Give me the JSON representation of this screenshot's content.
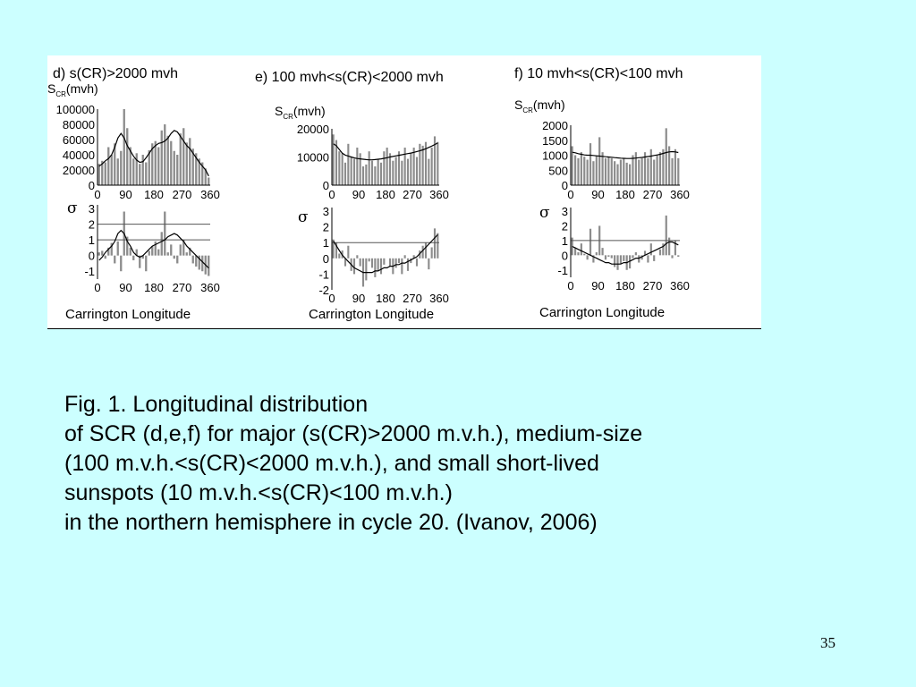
{
  "chart_data": [
    {
      "type": "bar",
      "title": "d) s(CR)>2000 mvh",
      "xlabel": "Carrington Longitude",
      "upper": {
        "ylabel_main": "S",
        "ylabel_sub": "CR",
        "ylabel_unit": "(mvh)",
        "ylim": [
          0,
          100000
        ],
        "yticks": [
          "100000",
          "80000",
          "60000",
          "40000",
          "20000",
          "0"
        ],
        "xticks": [
          "0",
          "90",
          "180",
          "270",
          "360"
        ],
        "xlim": [
          0,
          360
        ],
        "values": [
          28000,
          32000,
          30000,
          50000,
          40000,
          55000,
          35000,
          45000,
          100000,
          75000,
          50000,
          35000,
          42000,
          28000,
          40000,
          30000,
          46000,
          55000,
          58000,
          50000,
          72000,
          80000,
          65000,
          58000,
          45000,
          40000,
          68000,
          75000,
          56000,
          62000,
          48000,
          42000,
          35000,
          30000,
          22000,
          10000
        ],
        "smooth": [
          25000,
          28000,
          32000,
          35000,
          40000,
          50000,
          62000,
          68000,
          62000,
          52000,
          45000,
          38000,
          33000,
          30000,
          31000,
          36000,
          42000,
          48000,
          52000,
          55000,
          56000,
          58000,
          62000,
          68000,
          72000,
          70000,
          64000,
          58000,
          52000,
          48000,
          42000,
          36000,
          30000,
          25000,
          20000,
          12000
        ]
      },
      "lower": {
        "ylabel": "σ",
        "ylim": [
          -1.5,
          3
        ],
        "yticks": [
          "3",
          "2",
          "1",
          "0",
          "-1"
        ],
        "xticks": [
          "0",
          "90",
          "180",
          "270",
          "360"
        ],
        "xlim": [
          0,
          360
        ],
        "reference_lines": [
          2,
          1
        ],
        "values": [
          0.2,
          0.3,
          -0.2,
          0.5,
          0.8,
          -0.5,
          0.9,
          -1.0,
          2.8,
          1.2,
          0.5,
          -0.3,
          0.4,
          -0.8,
          -0.2,
          -1.0,
          0.3,
          0.6,
          0.9,
          0.4,
          1.5,
          2.8,
          0.2,
          0.7,
          -0.2,
          -0.5,
          0.7,
          1.0,
          0.2,
          0.5,
          -0.5,
          -0.7,
          -0.9,
          -1.0,
          -1.2,
          -1.3
        ],
        "smooth": [
          -0.3,
          -0.1,
          0.2,
          0.4,
          0.6,
          0.9,
          1.4,
          1.6,
          1.4,
          0.9,
          0.6,
          0.2,
          0.0,
          -0.1,
          0.0,
          0.2,
          0.4,
          0.6,
          0.7,
          0.8,
          0.9,
          1.0,
          1.2,
          1.3,
          1.4,
          1.3,
          1.1,
          0.9,
          0.6,
          0.4,
          0.2,
          0.0,
          -0.2,
          -0.4,
          -0.6,
          -0.8
        ]
      }
    },
    {
      "type": "bar",
      "title": "e) 100 mvh<s(CR)<2000 mvh",
      "xlabel": "Carrington Longitude",
      "upper": {
        "ylabel_main": "S",
        "ylabel_sub": "CR",
        "ylabel_unit": "(mvh)",
        "ylim": [
          0,
          30000
        ],
        "yticks": [
          "20000",
          "10000",
          "0"
        ],
        "xticks": [
          "0",
          "90",
          "180",
          "270",
          "360"
        ],
        "xlim": [
          0,
          360
        ],
        "values": [
          27000,
          24000,
          18000,
          17000,
          12000,
          22000,
          15000,
          14000,
          20000,
          17000,
          10000,
          11000,
          18000,
          13000,
          10000,
          14000,
          12000,
          18000,
          20000,
          17000,
          13000,
          15000,
          18000,
          13000,
          20000,
          14000,
          17000,
          20000,
          15000,
          22000,
          21000,
          23000,
          14000,
          20000,
          26000,
          23000
        ],
        "smooth": [
          22000,
          21000,
          19000,
          17000,
          16000,
          15500,
          15000,
          14500,
          14200,
          14000,
          13800,
          13600,
          13500,
          13500,
          13600,
          13800,
          14000,
          14300,
          14600,
          15000,
          15300,
          15600,
          15900,
          16200,
          16500,
          16800,
          17100,
          17500,
          17900,
          18300,
          18800,
          19400,
          20100,
          20800,
          21600,
          22500
        ]
      },
      "lower": {
        "ylabel": "σ",
        "ylim": [
          -2,
          3
        ],
        "yticks": [
          "3",
          "2",
          "1",
          "0",
          "-1",
          "-2"
        ],
        "xticks": [
          "0",
          "90",
          "180",
          "270",
          "360"
        ],
        "xlim": [
          0,
          360
        ],
        "reference_lines": [
          1
        ],
        "values": [
          1.2,
          1.0,
          0.3,
          0.5,
          -0.5,
          0.8,
          -0.8,
          -1.0,
          0.2,
          -0.5,
          -1.8,
          -1.4,
          -0.2,
          -0.6,
          -1.2,
          -0.8,
          -1.0,
          -0.4,
          0.0,
          -0.5,
          -1.0,
          -0.6,
          -0.3,
          -1.0,
          0.2,
          -0.8,
          -0.3,
          0.2,
          -0.5,
          0.5,
          0.8,
          1.0,
          -0.7,
          0.7,
          1.9,
          1.6
        ],
        "smooth": [
          1.1,
          0.8,
          0.5,
          0.2,
          0.0,
          -0.2,
          -0.4,
          -0.6,
          -0.7,
          -0.8,
          -0.9,
          -0.9,
          -0.9,
          -0.9,
          -0.8,
          -0.8,
          -0.7,
          -0.6,
          -0.6,
          -0.5,
          -0.5,
          -0.4,
          -0.4,
          -0.3,
          -0.3,
          -0.2,
          -0.1,
          0.0,
          0.1,
          0.3,
          0.5,
          0.7,
          0.9,
          1.1,
          1.3,
          1.5
        ]
      }
    },
    {
      "type": "bar",
      "title": "f) 10 mvh<s(CR)<100 mvh",
      "xlabel": "Carrington Longitude",
      "upper": {
        "ylabel_main": "S",
        "ylabel_sub": "CR",
        "ylabel_unit": "(mvh)",
        "ylim": [
          0,
          2000
        ],
        "yticks": [
          "2000",
          "1500",
          "1000",
          "500",
          "0"
        ],
        "xticks": [
          "0",
          "90",
          "180",
          "270",
          "360"
        ],
        "xlim": [
          0,
          360
        ],
        "values": [
          1300,
          1000,
          900,
          1100,
          950,
          850,
          1400,
          800,
          1000,
          1600,
          1100,
          900,
          950,
          900,
          800,
          700,
          850,
          900,
          750,
          700,
          1000,
          1100,
          850,
          900,
          1100,
          900,
          1200,
          850,
          1000,
          1100,
          1200,
          1900,
          1300,
          900,
          1200,
          900
        ],
        "smooth": [
          1100,
          1080,
          1050,
          1030,
          1010,
          1000,
          1000,
          990,
          980,
          970,
          960,
          950,
          940,
          930,
          920,
          910,
          900,
          895,
          890,
          890,
          895,
          905,
          915,
          925,
          940,
          955,
          970,
          990,
          1010,
          1030,
          1060,
          1090,
          1110,
          1120,
          1110,
          1090
        ]
      },
      "lower": {
        "ylabel": "σ",
        "ylim": [
          -1.5,
          3
        ],
        "yticks": [
          "3",
          "2",
          "1",
          "0",
          "-1"
        ],
        "xticks": [
          "0",
          "90",
          "180",
          "270",
          "360"
        ],
        "xlim": [
          0,
          360
        ],
        "reference_lines": [
          1
        ],
        "values": [
          1.2,
          0.5,
          0.2,
          0.8,
          0.1,
          -0.3,
          1.8,
          -0.5,
          0.2,
          2.0,
          0.5,
          -0.3,
          -0.1,
          -0.2,
          -0.8,
          -1.0,
          -0.6,
          -0.4,
          -1.0,
          -0.9,
          -0.2,
          0.2,
          -0.5,
          -0.3,
          0.3,
          -0.5,
          0.8,
          -0.4,
          0.0,
          0.4,
          0.8,
          2.7,
          1.2,
          -0.2,
          1.0,
          -0.1
        ],
        "smooth": [
          0.6,
          0.5,
          0.4,
          0.3,
          0.2,
          0.1,
          0.0,
          -0.1,
          -0.2,
          -0.3,
          -0.4,
          -0.5,
          -0.5,
          -0.6,
          -0.6,
          -0.6,
          -0.6,
          -0.5,
          -0.5,
          -0.4,
          -0.3,
          -0.2,
          -0.2,
          -0.1,
          0.0,
          0.1,
          0.2,
          0.3,
          0.4,
          0.5,
          0.6,
          0.8,
          0.9,
          0.9,
          0.8,
          0.7
        ]
      }
    }
  ],
  "colors": {
    "background": "#ccffff",
    "bar": "#8c8c8c",
    "line": "#000000",
    "reference_line": "#555555"
  },
  "caption": {
    "line1": "Fig. 1. Longitudinal distribution",
    "line2": "of SCR (d,e,f) for major (s(CR)>2000 m.v.h.), medium-size",
    "line3": "(100 m.v.h.<s(CR)<2000 m.v.h.), and small short-lived",
    "line4": "sunspots (10 m.v.h.<s(CR)<100 m.v.h.)",
    "line5": "in the northern hemisphere in cycle 20.  (Ivanov, 2006)"
  },
  "page_number": "35"
}
